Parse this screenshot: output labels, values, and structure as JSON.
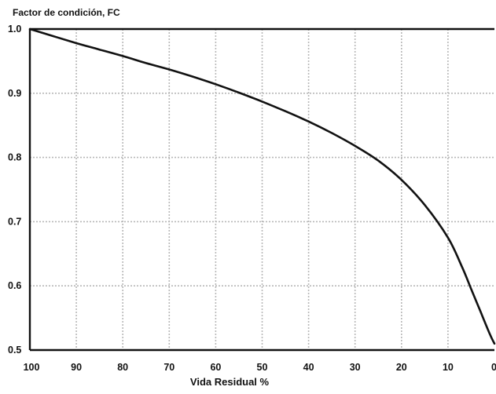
{
  "chart_data": {
    "type": "line",
    "ylabel": "Factor de condición, FC",
    "xlabel": "Vida Residual %",
    "xlim": [
      100,
      0
    ],
    "ylim": [
      0.5,
      1.0
    ],
    "x_ticks": [
      100,
      90,
      80,
      70,
      60,
      50,
      40,
      30,
      20,
      10,
      0
    ],
    "x_tick_labels": [
      "100",
      "90",
      "80",
      "70",
      "60",
      "50",
      "40",
      "30",
      "20",
      "10",
      "0"
    ],
    "y_ticks": [
      1.0,
      0.9,
      0.8,
      0.7,
      0.6,
      0.5
    ],
    "y_tick_labels": [
      "1.0",
      "0.9",
      "0.8",
      "0.7",
      "0.6",
      "0.5"
    ],
    "grid": true,
    "series": [
      {
        "x": [
          100,
          95,
          90,
          85,
          80,
          75,
          70,
          65,
          60,
          55,
          50,
          45,
          40,
          35,
          30,
          25,
          20,
          15,
          10,
          7,
          5,
          3,
          1,
          0
        ],
        "y": [
          1.0,
          0.989,
          0.978,
          0.968,
          0.958,
          0.947,
          0.937,
          0.926,
          0.914,
          0.901,
          0.887,
          0.872,
          0.856,
          0.838,
          0.818,
          0.795,
          0.765,
          0.726,
          0.675,
          0.63,
          0.595,
          0.56,
          0.525,
          0.51
        ]
      }
    ]
  }
}
